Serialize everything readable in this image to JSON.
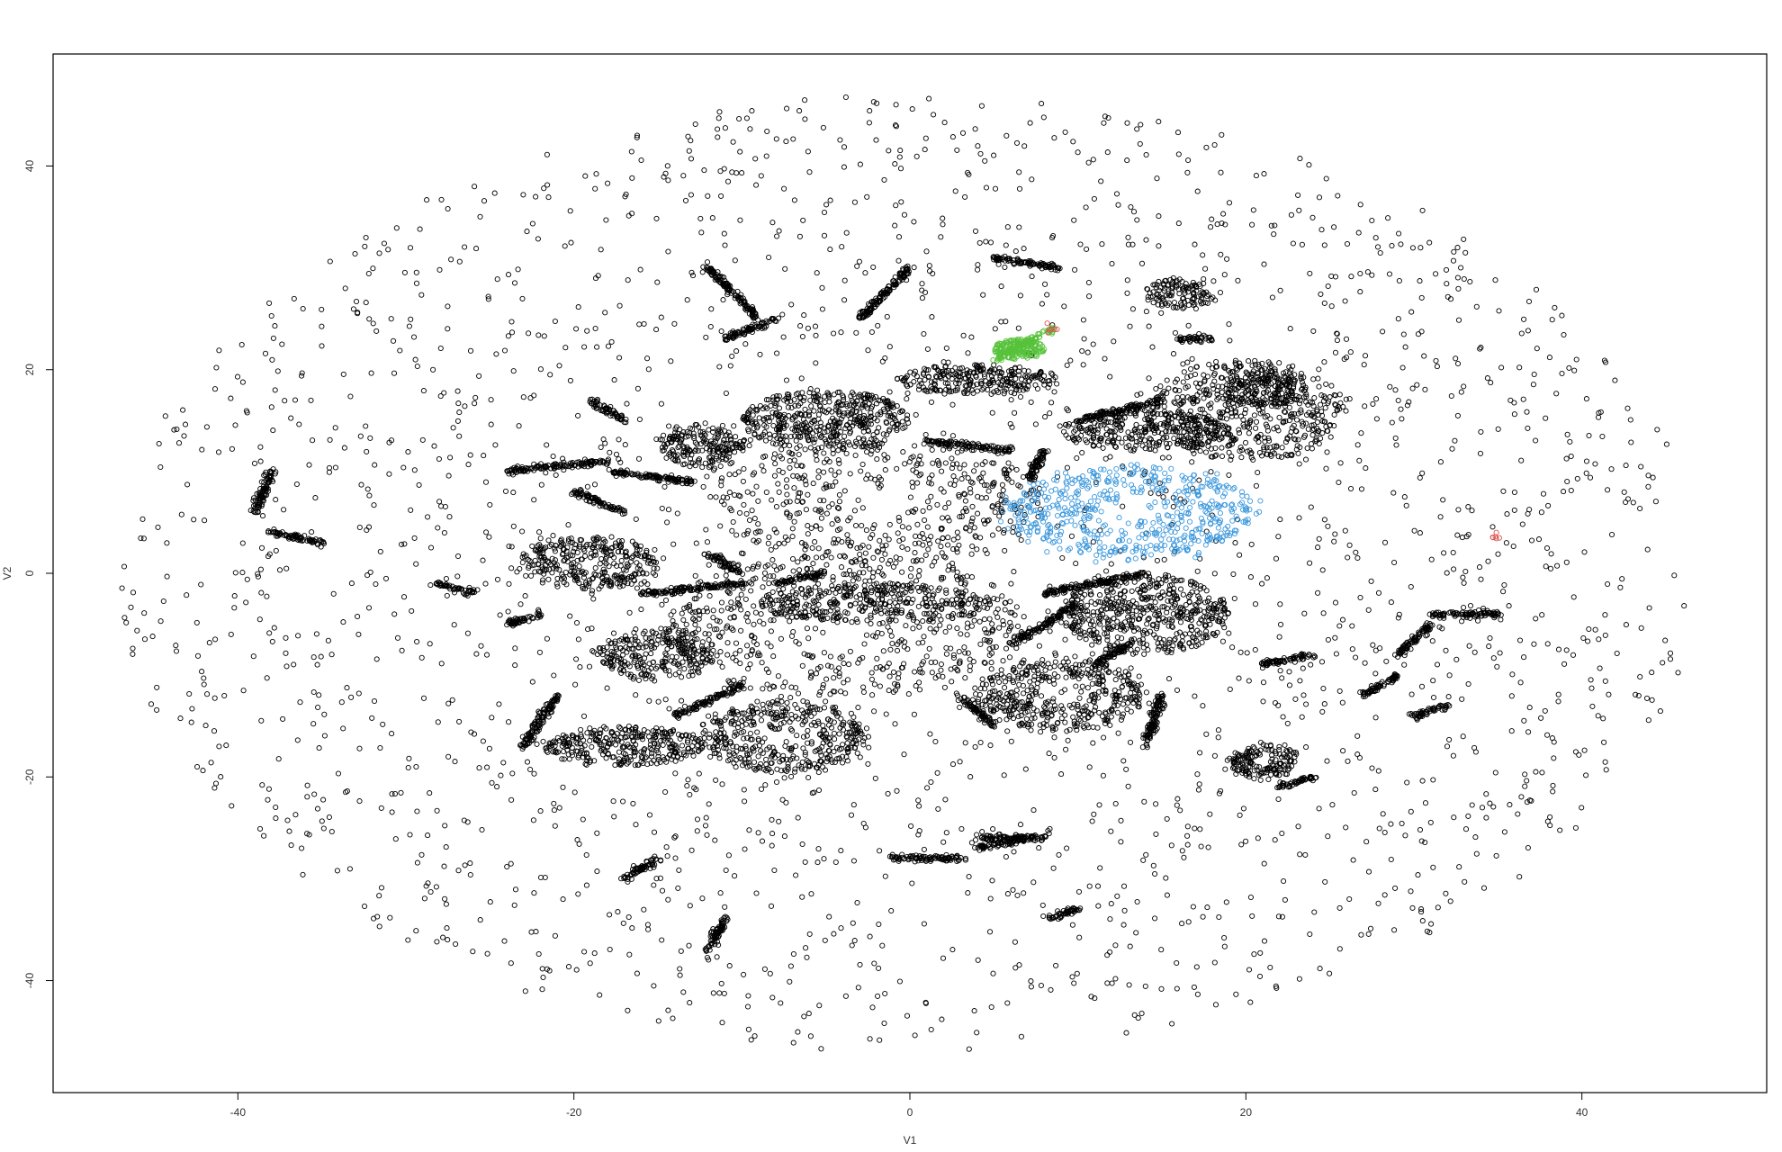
{
  "chart_data": {
    "type": "scatter",
    "xlabel": "V1",
    "ylabel": "V2",
    "xlim": [
      -51,
      51
    ],
    "ylim": [
      -51,
      51
    ],
    "xticks": [
      -40,
      -20,
      0,
      20,
      40
    ],
    "yticks": [
      -40,
      -20,
      0,
      20,
      40
    ],
    "xtick_labels": [
      "-40",
      "-20",
      "0",
      "20",
      "40"
    ],
    "ytick_labels": [
      "-40",
      "-20",
      "0",
      "20",
      "40"
    ],
    "grid": false,
    "legend": "none",
    "marker": "open-circle",
    "colors": {
      "default": "#000000",
      "green": "#56c23a",
      "blue": "#3a97dc",
      "red": "#d9534f"
    },
    "background_cloud": {
      "center": [
        0,
        0
      ],
      "radius_x": 47,
      "radius_y": 47,
      "n_points": 2400,
      "color": "default"
    },
    "clusters": [
      {
        "shape": "ring",
        "center": [
          -2,
          7
        ],
        "rx": 10,
        "ry": 6,
        "n": 420,
        "color": "default"
      },
      {
        "shape": "ring",
        "center": [
          -4,
          -5
        ],
        "rx": 11,
        "ry": 7,
        "n": 520,
        "color": "default"
      },
      {
        "shape": "ring",
        "center": [
          13,
          6
        ],
        "rx": 7.5,
        "ry": 4.5,
        "n": 560,
        "color": "blue"
      },
      {
        "shape": "ring",
        "center": [
          -19,
          1
        ],
        "rx": 4,
        "ry": 2.5,
        "n": 320,
        "color": "default"
      },
      {
        "shape": "ring",
        "center": [
          -15,
          -8
        ],
        "rx": 3.5,
        "ry": 2.5,
        "n": 260,
        "color": "default"
      },
      {
        "shape": "ring",
        "center": [
          -7.5,
          -16
        ],
        "rx": 5,
        "ry": 3.5,
        "n": 420,
        "color": "default"
      },
      {
        "shape": "ring",
        "center": [
          9,
          -12
        ],
        "rx": 5,
        "ry": 3.5,
        "n": 420,
        "color": "default"
      },
      {
        "shape": "ring",
        "center": [
          -12.5,
          12.5
        ],
        "rx": 2.5,
        "ry": 2,
        "n": 200,
        "color": "default"
      },
      {
        "shape": "ring",
        "center": [
          21,
          18
        ],
        "rx": 2.5,
        "ry": 1.8,
        "n": 180,
        "color": "default"
      },
      {
        "shape": "ring",
        "center": [
          21,
          -18.5
        ],
        "rx": 2,
        "ry": 1.5,
        "n": 160,
        "color": "default"
      },
      {
        "shape": "ring",
        "center": [
          16,
          27.5
        ],
        "rx": 2,
        "ry": 1.5,
        "n": 120,
        "color": "default"
      },
      {
        "shape": "blob",
        "center": [
          -5,
          15
        ],
        "rx": 5,
        "ry": 3,
        "n": 460,
        "color": "default"
      },
      {
        "shape": "blob",
        "center": [
          4,
          19
        ],
        "rx": 5,
        "ry": 1.5,
        "n": 260,
        "color": "default"
      },
      {
        "shape": "blob",
        "center": [
          20,
          16
        ],
        "rx": 6,
        "ry": 5,
        "n": 520,
        "color": "default"
      },
      {
        "shape": "blob",
        "center": [
          14,
          14
        ],
        "rx": 5,
        "ry": 2,
        "n": 300,
        "color": "default"
      },
      {
        "shape": "blob",
        "center": [
          14,
          -4
        ],
        "rx": 5,
        "ry": 4,
        "n": 520,
        "color": "default"
      },
      {
        "shape": "blob",
        "center": [
          -17,
          -17
        ],
        "rx": 5,
        "ry": 2,
        "n": 320,
        "color": "default"
      },
      {
        "shape": "blob",
        "center": [
          -2,
          -3
        ],
        "rx": 7,
        "ry": 2,
        "n": 300,
        "color": "default"
      },
      {
        "shape": "blob",
        "center": [
          6.5,
          22
        ],
        "rx": 1.5,
        "ry": 1,
        "n": 160,
        "color": "green"
      }
    ],
    "segments": [
      {
        "from": [
          -12,
          30
        ],
        "to": [
          -9,
          25
        ],
        "color": "default"
      },
      {
        "from": [
          -11,
          23
        ],
        "to": [
          -8,
          25
        ],
        "color": "default"
      },
      {
        "from": [
          -38,
          10
        ],
        "to": [
          -39,
          6
        ],
        "color": "default"
      },
      {
        "from": [
          -38,
          4
        ],
        "to": [
          -35,
          3
        ],
        "color": "default"
      },
      {
        "from": [
          -24,
          10
        ],
        "to": [
          -18,
          11
        ],
        "color": "default"
      },
      {
        "from": [
          -13,
          9
        ],
        "to": [
          -18,
          10
        ],
        "color": "default"
      },
      {
        "from": [
          -20,
          8
        ],
        "to": [
          -17,
          6
        ],
        "color": "default"
      },
      {
        "from": [
          -12,
          2
        ],
        "to": [
          -10,
          0
        ],
        "color": "default"
      },
      {
        "from": [
          -16,
          -2
        ],
        "to": [
          -10,
          -1
        ],
        "color": "default"
      },
      {
        "from": [
          -8,
          -1
        ],
        "to": [
          -5,
          0
        ],
        "color": "default"
      },
      {
        "from": [
          -28,
          -1
        ],
        "to": [
          -26,
          -2
        ],
        "color": "default"
      },
      {
        "from": [
          -24,
          -5
        ],
        "to": [
          -22,
          -4
        ],
        "color": "default"
      },
      {
        "from": [
          -14,
          -14
        ],
        "to": [
          -10,
          -11
        ],
        "color": "default"
      },
      {
        "from": [
          -23,
          -17
        ],
        "to": [
          -21,
          -12
        ],
        "color": "default"
      },
      {
        "from": [
          -17,
          -30
        ],
        "to": [
          -15,
          -28
        ],
        "color": "default"
      },
      {
        "from": [
          -12,
          -37
        ],
        "to": [
          -11,
          -34
        ],
        "color": "default"
      },
      {
        "from": [
          -1,
          -28
        ],
        "to": [
          3,
          -28
        ],
        "color": "default"
      },
      {
        "from": [
          4,
          -27
        ],
        "to": [
          7,
          -26
        ],
        "color": "default"
      },
      {
        "from": [
          8,
          -34
        ],
        "to": [
          10,
          -33
        ],
        "color": "default"
      },
      {
        "from": [
          5,
          31
        ],
        "to": [
          9,
          30
        ],
        "color": "default"
      },
      {
        "from": [
          0,
          30
        ],
        "to": [
          -3,
          25
        ],
        "color": "default"
      },
      {
        "from": [
          10,
          15
        ],
        "to": [
          15,
          17
        ],
        "color": "default"
      },
      {
        "from": [
          16,
          23
        ],
        "to": [
          18,
          23
        ],
        "color": "default"
      },
      {
        "from": [
          7,
          9
        ],
        "to": [
          8,
          12
        ],
        "color": "default"
      },
      {
        "from": [
          8,
          -2
        ],
        "to": [
          14,
          0
        ],
        "color": "default"
      },
      {
        "from": [
          6,
          -7
        ],
        "to": [
          10,
          -3
        ],
        "color": "default"
      },
      {
        "from": [
          11,
          -9
        ],
        "to": [
          13,
          -7
        ],
        "color": "default"
      },
      {
        "from": [
          29,
          -8
        ],
        "to": [
          31,
          -5
        ],
        "color": "default"
      },
      {
        "from": [
          31,
          -4
        ],
        "to": [
          35,
          -4
        ],
        "color": "default"
      },
      {
        "from": [
          27,
          -12
        ],
        "to": [
          29,
          -10
        ],
        "color": "default"
      },
      {
        "from": [
          21,
          -9
        ],
        "to": [
          24,
          -8
        ],
        "color": "default"
      },
      {
        "from": [
          30,
          -14
        ],
        "to": [
          32,
          -13
        ],
        "color": "default"
      },
      {
        "from": [
          22,
          -21
        ],
        "to": [
          24,
          -20
        ],
        "color": "default"
      },
      {
        "from": [
          3,
          -12
        ],
        "to": [
          5,
          -15
        ],
        "color": "default"
      },
      {
        "from": [
          14,
          -17
        ],
        "to": [
          15,
          -12
        ],
        "color": "default"
      },
      {
        "from": [
          4,
          -26
        ],
        "to": [
          8,
          -26
        ],
        "color": "default"
      },
      {
        "from": [
          -17,
          15
        ],
        "to": [
          -19,
          17
        ],
        "color": "default"
      },
      {
        "from": [
          1,
          13
        ],
        "to": [
          6,
          12
        ],
        "color": "default"
      },
      {
        "from": [
          5,
          21
        ],
        "to": [
          8.5,
          24
        ],
        "color": "green"
      }
    ],
    "highlight_points": [
      {
        "x": 8.5,
        "y": 24,
        "color": "red"
      },
      {
        "x": 35,
        "y": 3.5,
        "color": "red"
      }
    ]
  }
}
